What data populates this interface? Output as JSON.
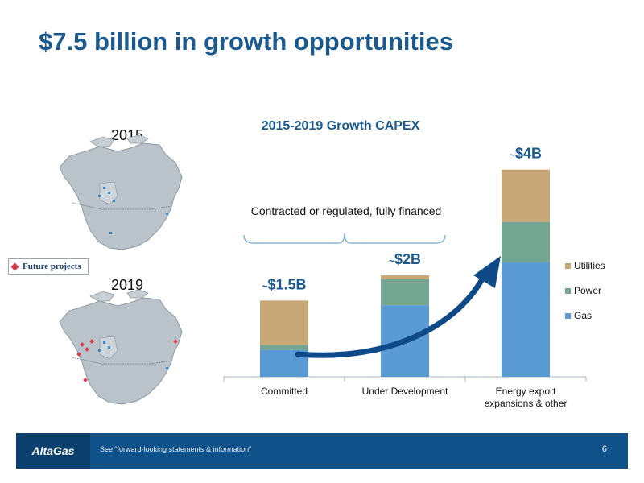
{
  "slide": {
    "title": "$7.5 billion in growth opportunities"
  },
  "maps": {
    "year_2015": "2015",
    "year_2019": "2019",
    "legend_label": "Future projects",
    "legend_color": "#d9394a"
  },
  "chart_data": {
    "type": "bar",
    "stacked": true,
    "title": "2015-2019 Growth CAPEX",
    "categories": [
      "Committed",
      "Under Development",
      "Energy export expansions & other"
    ],
    "category_lines": [
      [
        "Committed"
      ],
      [
        "Under Development"
      ],
      [
        "Energy export",
        "expansions & other"
      ]
    ],
    "series": [
      {
        "name": "Gas",
        "color": "#5b9bd5",
        "values": [
          0.56,
          1.5,
          2.4
        ]
      },
      {
        "name": "Power",
        "color": "#73a591",
        "values": [
          0.11,
          0.55,
          0.85
        ]
      },
      {
        "name": "Utilities",
        "color": "#c9a878",
        "values": [
          0.93,
          0.08,
          1.1
        ]
      }
    ],
    "legend_order": [
      "Utilities",
      "Power",
      "Gas"
    ],
    "total_labels": [
      "~$1.5B",
      "~$2B",
      "~$4B"
    ],
    "bracket_label": "Contracted or regulated, fully financed",
    "ylim": [
      0,
      4.7
    ],
    "legend_position": "right",
    "grid": false,
    "arrow_color": "#0d4a87"
  },
  "footer": {
    "logo": "AltaGas",
    "note": "See “forward-looking statements & information”",
    "page_number": "6"
  }
}
